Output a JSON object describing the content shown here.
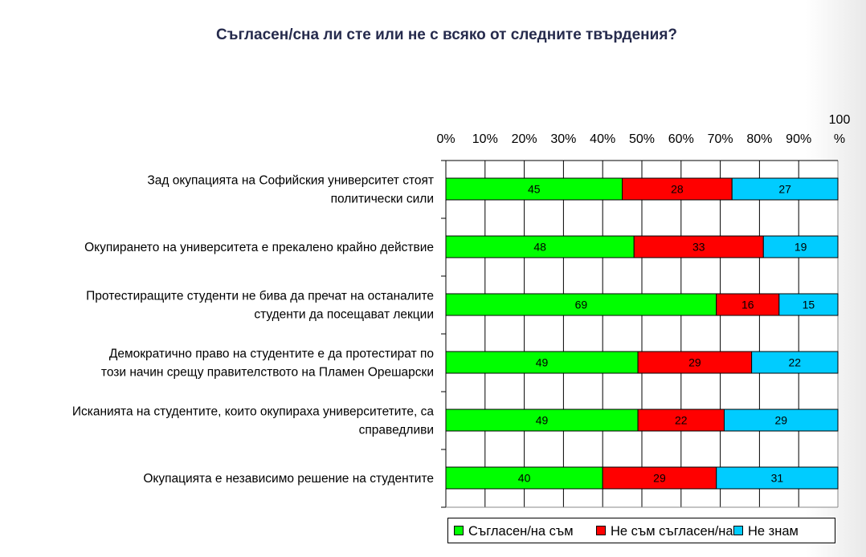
{
  "chart_data": {
    "type": "bar",
    "stacked": true,
    "orientation": "horizontal",
    "title": "Съгласен/сна ли сте или не с всяко от следните твърдения?",
    "categories": [
      [
        "Зад окупацията на Софийския университет стоят",
        "политически сили"
      ],
      [
        "Окупирането на университета е прекалено крайно действие"
      ],
      [
        "Протестиращите студенти не бива да пречат на останалите",
        "студенти да посещават лекции"
      ],
      [
        "Демократично право на студентите е да протестират по",
        "този начин срещу правителството на Пламен Орешарски"
      ],
      [
        "Исканията на студентите, които окупираха университетите, са",
        "справедливи"
      ],
      [
        "Окупацията е независимо решение на студентите"
      ]
    ],
    "series": [
      {
        "name": "Съгласен/на съм",
        "color": "#00ff00",
        "values": [
          45,
          48,
          69,
          49,
          49,
          40
        ]
      },
      {
        "name": "Не съм съгласен/на",
        "color": "#ff0000",
        "values": [
          28,
          33,
          16,
          29,
          22,
          29
        ]
      },
      {
        "name": "Не знам",
        "color": "#00ccff",
        "values": [
          27,
          19,
          15,
          22,
          29,
          31
        ]
      }
    ],
    "xlim": [
      0,
      100
    ],
    "xticks": [
      "0%",
      "10%",
      "20%",
      "30%",
      "40%",
      "50%",
      "60%",
      "70%",
      "80%",
      "90%",
      "100 %"
    ],
    "grid": true,
    "legend_position": "bottom"
  }
}
